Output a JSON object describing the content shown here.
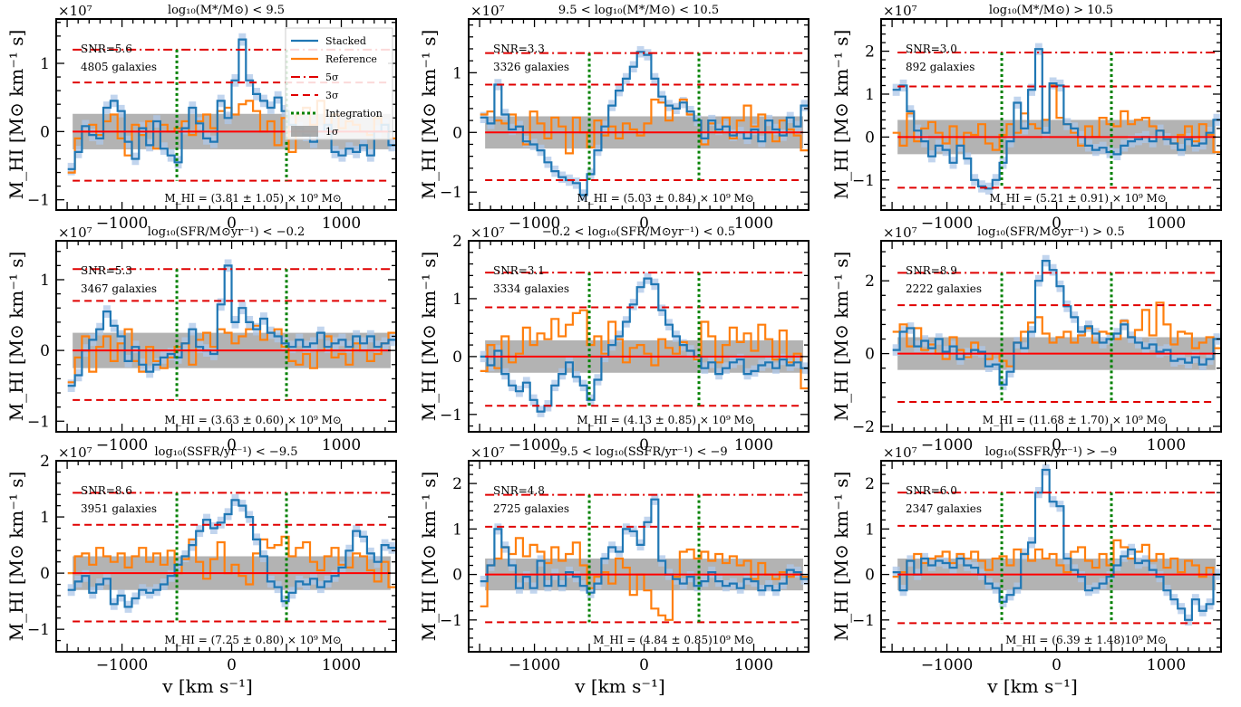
{
  "figure": {
    "xlabel": "v [km s⁻¹]",
    "ylabel": "M_HI [M⊙ km⁻¹ s]",
    "multiplier": "×10⁷"
  },
  "colors": {
    "stacked": "#1f77b4",
    "stacked_band": "#aec7e8",
    "reference": "#ff7f0e",
    "threshold": "#e00000",
    "zero_line": "#ff0000",
    "integration": "#008000",
    "sigma_band": "#999999"
  },
  "legend": {
    "location": "upper right of first panel",
    "items": [
      "Stacked",
      "Reference",
      "5σ",
      "3σ",
      "Integration",
      "1σ"
    ]
  },
  "chart_data": [
    {
      "type": "line",
      "title": "log₁₀(M*/M⊙) < 9.5",
      "snr_text": "SNR=5.6",
      "galaxies_text": "4805 galaxies",
      "mass_text": "M_HI = (3.81 ± 1.05) × 10⁹ M⊙",
      "xlim": [
        -1600,
        1500
      ],
      "ylim": [
        -1.15,
        1.65
      ],
      "yticks": [
        -1,
        0,
        1
      ],
      "xticks": [
        -1000,
        0,
        1000
      ],
      "sigma1": 0.26,
      "sigma3": 0.72,
      "sigma5": 1.2,
      "integration": [
        -500,
        500
      ],
      "stacked": [
        -0.55,
        -0.3,
        0.08,
        -0.05,
        -0.1,
        0.35,
        0.45,
        0.3,
        -0.15,
        -0.4,
        0.05,
        -0.2,
        0.15,
        -0.25,
        -0.35,
        -0.45,
        0.05,
        0.35,
        0.12,
        -0.1,
        -0.15,
        0.45,
        0.2,
        0.75,
        1.35,
        0.75,
        0.55,
        0.45,
        0.35,
        0.5,
        0.3,
        0.1,
        0.05,
        -0.05,
        -0.15,
        0.0,
        0.1,
        -0.3,
        -0.35,
        -0.25,
        -0.3,
        -0.2,
        -0.35,
        0.0,
        0.1,
        -0.2
      ],
      "reference": [
        -0.6,
        -0.1,
        0.0,
        0.1,
        -0.05,
        0.15,
        0.25,
        -0.1,
        -0.35,
        0.1,
        -0.05,
        0.15,
        -0.25,
        0.1,
        0.0,
        0.05,
        0.15,
        -0.05,
        0.15,
        0.25,
        0.05,
        0.3,
        0.35,
        0.25,
        0.4,
        0.45,
        0.3,
        0.0,
        0.15,
        -0.2,
        0.2,
        -0.3,
        0.25,
        0.35,
        0.1,
        0.45,
        0.1,
        0.25,
        0.05,
        0.15,
        0.1,
        0.0,
        -0.05,
        0.2,
        0.1,
        -0.1
      ]
    },
    {
      "type": "line",
      "title": "9.5 < log₁₀(M*/M⊙) < 10.5",
      "snr_text": "SNR=3.3",
      "galaxies_text": "3326 galaxies",
      "mass_text": "M_HI = (5.03 ± 0.84) × 10⁹ M⊙",
      "xlim": [
        -1600,
        1500
      ],
      "ylim": [
        -1.3,
        1.9
      ],
      "yticks": [
        -1,
        0,
        1
      ],
      "xticks": [
        -1000,
        0,
        1000
      ],
      "sigma1": 0.27,
      "sigma3": 0.8,
      "sigma5": 1.33,
      "integration": [
        -500,
        500
      ],
      "stacked": [
        0.25,
        0.15,
        0.8,
        0.3,
        0.05,
        0.1,
        -0.15,
        -0.2,
        -0.3,
        -0.5,
        -0.65,
        -0.75,
        -0.8,
        -0.85,
        -1.05,
        -0.7,
        -0.3,
        0.1,
        0.45,
        0.7,
        0.9,
        1.1,
        1.35,
        1.3,
        0.9,
        0.6,
        0.45,
        0.4,
        0.5,
        0.35,
        0.2,
        -0.1,
        0.2,
        0.05,
        0.1,
        -0.05,
        0.0,
        -0.1,
        0.05,
        -0.15,
        0.2,
        0.05,
        -0.05,
        0.25,
        0.1,
        0.45
      ],
      "reference": [
        0.3,
        0.35,
        0.2,
        0.15,
        0.3,
        0.1,
        -0.2,
        0.35,
        0.15,
        -0.1,
        0.25,
        0.1,
        -0.35,
        0.25,
        0.0,
        -0.25,
        0.2,
        -0.05,
        0.1,
        -0.1,
        0.15,
        0.05,
        -0.05,
        0.15,
        0.55,
        0.5,
        0.2,
        0.4,
        0.55,
        0.3,
        0.2,
        -0.2,
        0.15,
        0.0,
        0.25,
        -0.1,
        0.2,
        0.45,
        0.1,
        0.3,
        0.0,
        -0.15,
        0.2,
        0.05,
        -0.05,
        -0.3
      ]
    },
    {
      "type": "line",
      "title": "log₁₀(M*/M⊙) > 10.5",
      "snr_text": "SNR=3.0",
      "galaxies_text": "892 galaxies",
      "mass_text": "M_HI = (5.21 ± 0.91) × 10⁹ M⊙",
      "xlim": [
        -1600,
        1500
      ],
      "ylim": [
        -1.7,
        2.75
      ],
      "yticks": [
        -1,
        0,
        1,
        2
      ],
      "xticks": [
        -1000,
        0,
        1000
      ],
      "sigma1": 0.4,
      "sigma3": 1.18,
      "sigma5": 1.97,
      "integration": [
        -500,
        500
      ],
      "stacked": [
        1.1,
        1.2,
        0.6,
        0.15,
        -0.1,
        -0.45,
        -0.2,
        -0.3,
        -0.6,
        -0.2,
        -0.5,
        -1.0,
        -1.15,
        -1.2,
        -1.0,
        -0.6,
        -0.1,
        0.8,
        0.2,
        1.1,
        2.05,
        0.1,
        1.25,
        1.2,
        0.3,
        0.2,
        0.0,
        -0.2,
        -0.3,
        -0.25,
        -0.35,
        -0.4,
        -0.2,
        -0.1,
        -0.05,
        0.0,
        -0.1,
        0.15,
        -0.05,
        -0.15,
        -0.3,
        -0.05,
        -0.2,
        -0.15,
        0.1,
        0.4
      ],
      "reference": [
        0.1,
        -0.2,
        0.55,
        -0.1,
        0.2,
        0.35,
        0.1,
        -0.15,
        0.25,
        -0.2,
        0.1,
        0.05,
        0.3,
        -0.15,
        -0.3,
        0.05,
        0.3,
        0.1,
        0.55,
        0.3,
        0.2,
        0.4,
        1.2,
        0.45,
        0.3,
        0.1,
        -0.2,
        0.25,
        0.0,
        0.45,
        0.3,
        0.25,
        0.6,
        0.3,
        0.4,
        0.45,
        0.25,
        0.15,
        0.0,
        -0.15,
        0.05,
        0.25,
        -0.1,
        0.3,
        0.05,
        -0.35
      ]
    },
    {
      "type": "line",
      "title": "log₁₀(SFR/M⊙yr⁻¹) < −0.2",
      "snr_text": "SNR=5.3",
      "galaxies_text": "3467 galaxies",
      "mass_text": "M_HI = (3.63 ± 0.60) × 10⁹ M⊙",
      "xlim": [
        -1600,
        1500
      ],
      "ylim": [
        -1.15,
        1.55
      ],
      "yticks": [
        -1,
        0,
        1
      ],
      "xticks": [
        -1000,
        0,
        1000
      ],
      "sigma1": 0.25,
      "sigma3": 0.7,
      "sigma5": 1.15,
      "integration": [
        -500,
        500
      ],
      "stacked": [
        -0.5,
        -0.35,
        0.0,
        0.15,
        0.3,
        0.55,
        0.35,
        0.2,
        -0.15,
        0.05,
        -0.2,
        -0.3,
        -0.2,
        -0.1,
        -0.05,
        -0.1,
        0.1,
        0.3,
        0.05,
        0.0,
        -0.05,
        0.65,
        1.2,
        0.4,
        0.6,
        0.4,
        0.3,
        0.45,
        0.25,
        0.2,
        0.1,
        0.05,
        0.15,
        0.05,
        0.1,
        0.25,
        0.05,
        0.1,
        0.15,
        0.05,
        0.2,
        0.1,
        0.2,
        0.05,
        0.1,
        0.15
      ],
      "reference": [
        -0.45,
        -0.1,
        0.2,
        -0.3,
        0.05,
        0.2,
        -0.15,
        0.1,
        0.3,
        -0.15,
        -0.3,
        0.05,
        -0.15,
        -0.25,
        -0.1,
        0.05,
        0.1,
        -0.2,
        0.15,
        0.25,
        0.05,
        0.3,
        0.25,
        0.1,
        0.2,
        0.3,
        0.35,
        0.15,
        0.25,
        0.3,
        0.05,
        -0.15,
        -0.2,
        -0.05,
        -0.25,
        0.0,
        0.2,
        -0.1,
        -0.05,
        -0.2,
        0.1,
        0.0,
        -0.15,
        -0.05,
        0.1,
        0.25
      ]
    },
    {
      "type": "line",
      "title": "−0.2 < log₁₀(SFR/M⊙yr⁻¹) < 0.5",
      "snr_text": "SNR=3.1",
      "galaxies_text": "3334 galaxies",
      "mass_text": "M_HI = (4.13 ± 0.85) × 10⁹ M⊙",
      "xlim": [
        -1600,
        1500
      ],
      "ylim": [
        -1.3,
        2.0
      ],
      "yticks": [
        -1,
        0,
        1,
        2
      ],
      "xticks": [
        -1000,
        0,
        1000
      ],
      "sigma1": 0.28,
      "sigma3": 0.85,
      "sigma5": 1.45,
      "integration": [
        -500,
        500
      ],
      "stacked": [
        0.0,
        -0.15,
        0.1,
        -0.3,
        -0.5,
        -0.6,
        -0.45,
        -0.75,
        -0.95,
        -0.85,
        -0.5,
        -0.3,
        -0.1,
        -0.35,
        -0.5,
        -0.75,
        -0.4,
        0.0,
        0.2,
        0.35,
        0.6,
        0.9,
        1.2,
        1.35,
        1.25,
        0.8,
        0.55,
        0.35,
        0.2,
        0.1,
        0.0,
        -0.2,
        -0.1,
        -0.3,
        -0.2,
        -0.1,
        -0.05,
        -0.3,
        -0.25,
        -0.15,
        -0.1,
        -0.2,
        -0.05,
        -0.15,
        -0.1,
        -0.2
      ],
      "reference": [
        -0.25,
        0.2,
        -0.2,
        0.35,
        -0.1,
        0.05,
        0.5,
        0.2,
        0.4,
        0.3,
        0.65,
        0.35,
        0.55,
        0.75,
        0.8,
        0.2,
        0.35,
        0.05,
        0.6,
        0.3,
        -0.1,
        0.15,
        0.2,
        0.05,
        -0.15,
        0.3,
        0.15,
        0.05,
        0.25,
        0.1,
        -0.05,
        0.6,
        0.35,
        -0.1,
        0.2,
        0.5,
        0.25,
        0.4,
        0.1,
        0.55,
        0.3,
        -0.05,
        0.45,
        -0.1,
        0.05,
        -0.55
      ]
    },
    {
      "type": "line",
      "title": "log₁₀(SFR/M⊙yr⁻¹) > 0.5",
      "snr_text": "SNR=8.9",
      "galaxies_text": "2222 galaxies",
      "mass_text": "M_HI = (11.68 ± 1.70) × 10⁹ M⊙",
      "xlim": [
        -1600,
        1500
      ],
      "ylim": [
        -2.15,
        3.1
      ],
      "yticks": [
        -2,
        0,
        2
      ],
      "xticks": [
        -1000,
        0,
        1000
      ],
      "sigma1": 0.45,
      "sigma3": 1.33,
      "sigma5": 2.22,
      "integration": [
        -500,
        500
      ],
      "stacked": [
        0.1,
        0.6,
        0.7,
        0.2,
        0.35,
        0.15,
        0.4,
        0.05,
        0.2,
        -0.15,
        0.0,
        0.1,
        0.05,
        -0.35,
        -0.3,
        -0.85,
        -0.5,
        0.3,
        0.15,
        0.6,
        2.0,
        2.55,
        2.3,
        1.85,
        1.3,
        1.0,
        0.6,
        0.75,
        0.55,
        0.3,
        0.4,
        0.55,
        0.8,
        0.45,
        0.3,
        0.15,
        0.25,
        0.05,
        0.1,
        -0.2,
        -0.15,
        -0.25,
        -0.1,
        -0.3,
        -0.15,
        0.4
      ],
      "reference": [
        0.6,
        0.8,
        0.2,
        0.7,
        0.1,
        0.25,
        0.0,
        -0.15,
        0.45,
        0.1,
        -0.1,
        0.3,
        0.0,
        -0.15,
        0.0,
        -0.2,
        -0.35,
        0.3,
        0.6,
        0.85,
        1.0,
        0.55,
        0.3,
        0.45,
        0.6,
        0.3,
        0.5,
        0.7,
        0.3,
        0.6,
        0.55,
        0.4,
        0.9,
        0.45,
        0.65,
        1.2,
        0.5,
        1.4,
        0.8,
        0.25,
        0.6,
        0.55,
        0.15,
        0.3,
        0.45,
        0.15
      ]
    },
    {
      "type": "line",
      "title": "log₁₀(SSFR/yr⁻¹) < −9.5",
      "snr_text": "SNR=8.6",
      "galaxies_text": "3951 galaxies",
      "mass_text": "M_HI = (7.25 ± 0.80) × 10⁹ M⊙",
      "xlim": [
        -1600,
        1500
      ],
      "ylim": [
        -1.4,
        2.0
      ],
      "yticks": [
        -1,
        0,
        1,
        2
      ],
      "xticks": [
        -1000,
        0,
        1000
      ],
      "sigma1": 0.3,
      "sigma3": 0.86,
      "sigma5": 1.43,
      "integration": [
        -500,
        500
      ],
      "stacked": [
        -0.3,
        -0.15,
        -0.05,
        -0.35,
        -0.2,
        -0.1,
        -0.55,
        -0.4,
        -0.6,
        -0.45,
        -0.3,
        -0.35,
        -0.3,
        -0.2,
        -0.05,
        0.15,
        0.3,
        0.5,
        0.75,
        0.95,
        0.8,
        0.9,
        1.05,
        1.3,
        1.2,
        1.0,
        0.6,
        0.3,
        -0.15,
        -0.25,
        -0.5,
        -0.35,
        -0.15,
        -0.2,
        -0.1,
        -0.25,
        -0.15,
        -0.05,
        0.1,
        0.4,
        0.75,
        0.65,
        0.35,
        0.2,
        0.5,
        0.45
      ],
      "reference": [
        0.0,
        0.3,
        0.35,
        0.15,
        0.45,
        0.3,
        0.2,
        0.35,
        0.1,
        0.3,
        0.45,
        0.2,
        0.35,
        0.15,
        0.4,
        0.0,
        0.25,
        0.6,
        0.2,
        -0.1,
        0.25,
        0.55,
        0.0,
        0.15,
        -0.05,
        -0.2,
        0.35,
        0.6,
        0.45,
        0.5,
        0.65,
        0.3,
        0.45,
        0.55,
        0.2,
        0.05,
        0.3,
        0.45,
        0.15,
        0.1,
        0.35,
        0.3,
        0.05,
        -0.15,
        0.2,
        -0.25
      ]
    },
    {
      "type": "line",
      "title": "−9.5 < log₁₀(SSFR/yr⁻¹) < −9",
      "snr_text": "SNR=4.8",
      "galaxies_text": "2725 galaxies",
      "mass_text": "M_HI = (4.84 ± 0.85)10⁹ M⊙",
      "xlim": [
        -1600,
        1500
      ],
      "ylim": [
        -1.7,
        2.5
      ],
      "yticks": [
        -1,
        0,
        1,
        2
      ],
      "xticks": [
        -1000,
        0,
        1000
      ],
      "sigma1": 0.35,
      "sigma3": 1.05,
      "sigma5": 1.75,
      "integration": [
        -500,
        500
      ],
      "stacked": [
        -0.15,
        0.2,
        1.0,
        0.6,
        0.2,
        -0.3,
        -0.05,
        -0.3,
        0.3,
        -0.25,
        0.0,
        -0.25,
        0.05,
        -0.05,
        -0.25,
        -0.4,
        -0.2,
        0.35,
        0.6,
        0.5,
        1.0,
        0.95,
        0.65,
        1.15,
        1.65,
        0.3,
        0.0,
        -0.1,
        -0.2,
        -0.05,
        -0.25,
        -0.15,
        0.05,
        -0.15,
        -0.25,
        -0.2,
        -0.3,
        -0.1,
        -0.15,
        -0.35,
        -0.25,
        -0.35,
        -0.2,
        0.1,
        0.05,
        -0.1
      ],
      "reference": [
        -0.7,
        0.2,
        0.35,
        0.6,
        0.45,
        0.8,
        0.4,
        0.65,
        0.5,
        0.25,
        0.6,
        0.3,
        0.45,
        0.7,
        0.2,
        -0.3,
        -0.05,
        0.05,
        -0.2,
        0.35,
        0.15,
        -0.45,
        0.0,
        -0.35,
        -0.75,
        -0.9,
        -1.0,
        -0.05,
        0.5,
        0.55,
        0.35,
        0.5,
        0.3,
        0.45,
        0.25,
        0.4,
        0.2,
        0.3,
        -0.1,
        0.25,
        0.0,
        -0.1,
        0.05,
        -0.05,
        0.0,
        -0.05
      ]
    },
    {
      "type": "line",
      "title": "log₁₀(SSFR/yr⁻¹) > −9",
      "snr_text": "SNR=6.0",
      "galaxies_text": "2347 galaxies",
      "mass_text": "M_HI = (6.39 ± 1.48)10⁹ M⊙",
      "xlim": [
        -1600,
        1500
      ],
      "ylim": [
        -1.7,
        2.5
      ],
      "yticks": [
        -1,
        0,
        1,
        2
      ],
      "xticks": [
        -1000,
        0,
        1000
      ],
      "sigma1": 0.35,
      "sigma3": 1.07,
      "sigma5": 1.8,
      "integration": [
        -500,
        500
      ],
      "stacked": [
        0.05,
        -0.35,
        0.3,
        0.0,
        0.35,
        0.2,
        0.3,
        0.25,
        0.15,
        0.35,
        0.2,
        0.15,
        0.0,
        -0.2,
        -0.3,
        -0.6,
        -0.45,
        -0.3,
        0.45,
        0.7,
        1.8,
        2.3,
        1.6,
        1.5,
        0.35,
        0.1,
        -0.05,
        -0.35,
        -0.3,
        -0.2,
        -0.05,
        0.2,
        0.4,
        0.55,
        0.25,
        0.3,
        0.1,
        -0.05,
        -0.35,
        -0.55,
        -0.75,
        -1.0,
        -0.55,
        -0.8,
        -0.65,
        0.0
      ],
      "reference": [
        -0.05,
        0.05,
        0.3,
        0.45,
        0.25,
        0.35,
        0.4,
        0.5,
        0.25,
        0.45,
        0.35,
        0.5,
        0.3,
        0.1,
        0.35,
        0.4,
        0.2,
        0.55,
        0.45,
        0.3,
        0.55,
        0.35,
        0.45,
        0.2,
        0.05,
        0.5,
        0.6,
        0.3,
        0.15,
        0.45,
        0.2,
        0.75,
        0.6,
        0.35,
        0.5,
        0.65,
        0.3,
        0.45,
        0.15,
        0.35,
        0.05,
        0.3,
        0.2,
        -0.05,
        0.15,
        0.0
      ]
    }
  ]
}
